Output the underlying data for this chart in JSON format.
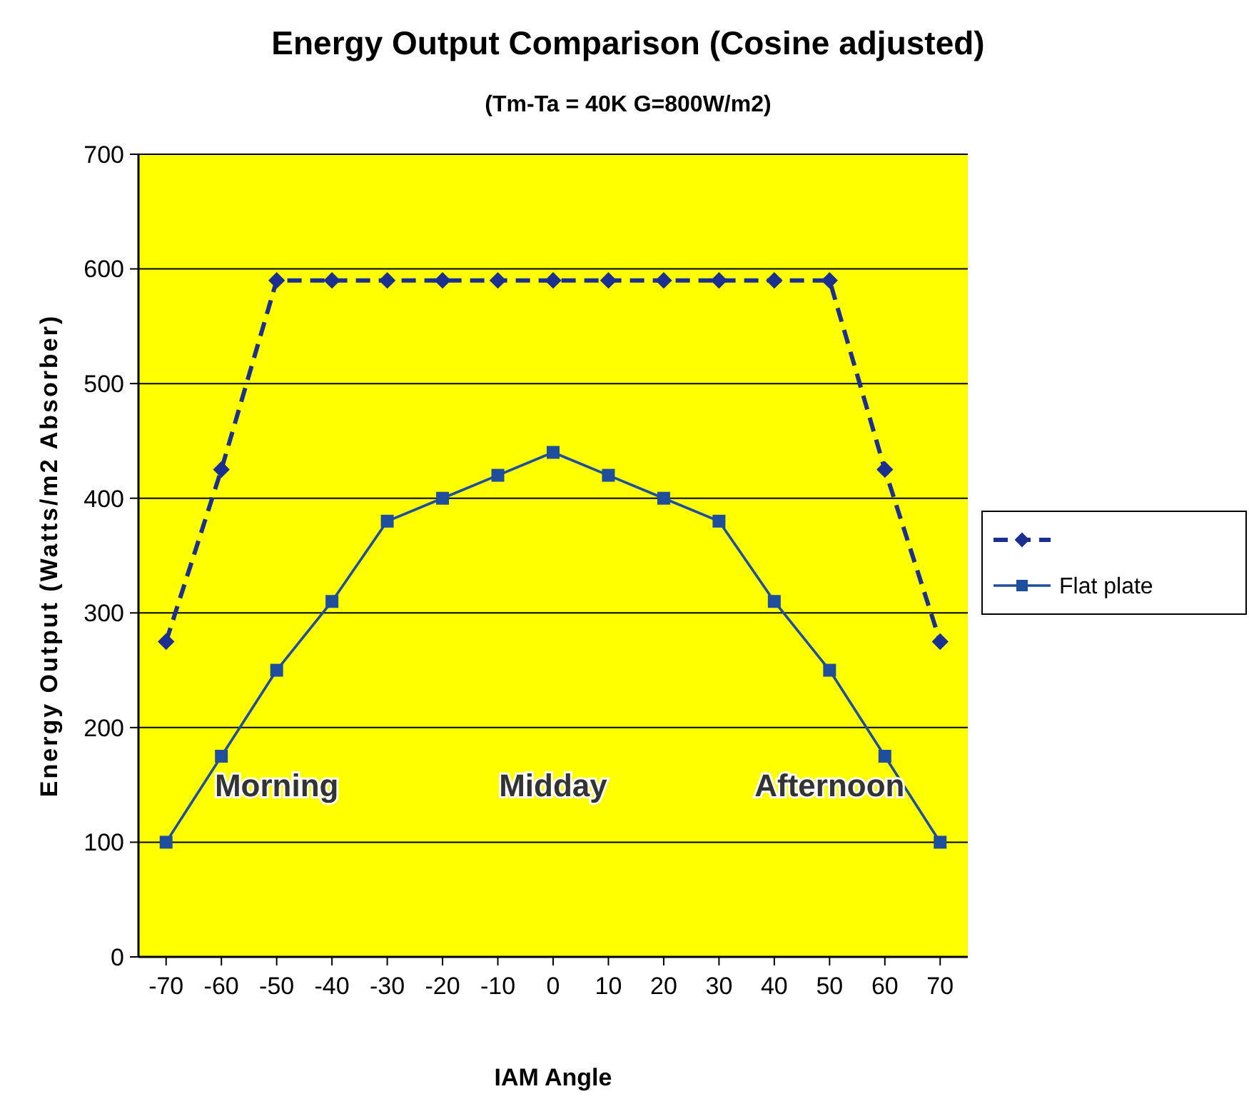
{
  "chart_data": {
    "type": "line",
    "title": "Energy Output Comparison (Cosine adjusted)",
    "subtitle": "(Tm-Ta = 40K  G=800W/m2)",
    "xlabel": "IAM Angle",
    "ylabel": "Energy Output (Watts/m2 Absorber)",
    "categories": [
      "-70",
      "-60",
      "-50",
      "-40",
      "-30",
      "-20",
      "-10",
      "0",
      "10",
      "20",
      "30",
      "40",
      "50",
      "60",
      "70"
    ],
    "series": [
      {
        "color": "#1a2f8f",
        "marker": "diamond",
        "line_style": "dashed",
        "values": [
          275,
          425,
          590,
          590,
          590,
          590,
          590,
          590,
          590,
          590,
          590,
          590,
          590,
          425,
          275
        ]
      },
      {
        "name": "Flat plate",
        "color": "#1f4e9c",
        "marker": "square",
        "line_style": "solid",
        "values": [
          100,
          175,
          250,
          310,
          380,
          400,
          420,
          440,
          420,
          400,
          380,
          310,
          250,
          175,
          100
        ]
      }
    ],
    "ylim": [
      0,
      700
    ],
    "yticks": [
      0,
      100,
      200,
      300,
      400,
      500,
      600,
      700
    ],
    "grid": "y",
    "legend": "right",
    "annotations": [
      "Morning",
      "Midday",
      "Afternoon"
    ]
  }
}
